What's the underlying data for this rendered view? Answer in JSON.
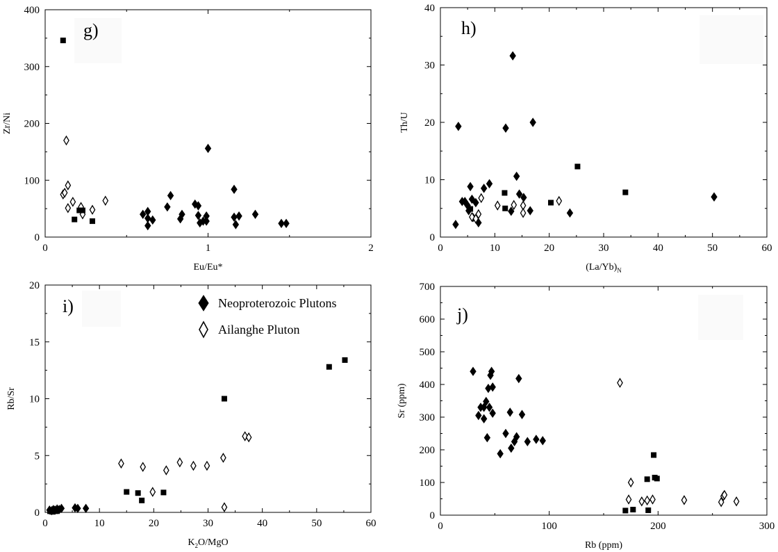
{
  "legend": {
    "items": [
      {
        "label": "Neoproterozoic Plutons",
        "marker": "diamond-filled"
      },
      {
        "label": "Ailanghe Pluton",
        "marker": "diamond-open"
      }
    ]
  },
  "chart_data": [
    {
      "id": "g",
      "type": "scatter",
      "panel_label": "g)",
      "xlabel": "Eu/Eu*",
      "ylabel": "Zr/Ni",
      "xlim": [
        0,
        2
      ],
      "ylim": [
        0,
        400
      ],
      "xticks": [
        0,
        1,
        2
      ],
      "xtick_labels": [
        "0",
        "1",
        "2"
      ],
      "yticks": [
        0,
        100,
        200,
        300,
        400
      ],
      "ytick_labels": [
        "0",
        "100",
        "200",
        "300",
        "400"
      ],
      "series": [
        {
          "marker": "diamond-filled",
          "points": [
            [
              0.6,
              40
            ],
            [
              0.63,
              45
            ],
            [
              0.63,
              33
            ],
            [
              0.63,
              20
            ],
            [
              0.66,
              30
            ],
            [
              0.75,
              53
            ],
            [
              0.77,
              73
            ],
            [
              0.83,
              32
            ],
            [
              0.84,
              40
            ],
            [
              0.92,
              58
            ],
            [
              0.94,
              55
            ],
            [
              0.94,
              38
            ],
            [
              0.95,
              25
            ],
            [
              0.97,
              28
            ],
            [
              0.99,
              28
            ],
            [
              0.99,
              37
            ],
            [
              1.0,
              156
            ],
            [
              1.16,
              35
            ],
            [
              1.16,
              84
            ],
            [
              1.17,
              22
            ],
            [
              1.19,
              37
            ],
            [
              1.29,
              40
            ],
            [
              1.45,
              24
            ],
            [
              1.48,
              24
            ]
          ]
        },
        {
          "marker": "diamond-open",
          "points": [
            [
              0.11,
              75
            ],
            [
              0.12,
              78
            ],
            [
              0.13,
              170
            ],
            [
              0.14,
              91
            ],
            [
              0.14,
              51
            ],
            [
              0.17,
              62
            ],
            [
              0.22,
              53
            ],
            [
              0.23,
              40
            ],
            [
              0.29,
              48
            ],
            [
              0.37,
              64
            ]
          ]
        },
        {
          "marker": "square-filled",
          "points": [
            [
              0.11,
              346
            ],
            [
              0.18,
              31
            ],
            [
              0.21,
              47
            ],
            [
              0.23,
              47
            ],
            [
              0.29,
              28
            ]
          ]
        }
      ]
    },
    {
      "id": "h",
      "type": "scatter",
      "panel_label": "h)",
      "xlabel": "(La/Yb)",
      "xlabel_sub": "N",
      "ylabel": "Th/U",
      "xlim": [
        0,
        60
      ],
      "ylim": [
        0,
        40
      ],
      "xticks": [
        0,
        10,
        20,
        30,
        40,
        50,
        60
      ],
      "xtick_labels": [
        "0",
        "10",
        "20",
        "30",
        "40",
        "50",
        "60"
      ],
      "yticks": [
        0,
        10,
        20,
        30,
        40
      ],
      "ytick_labels": [
        "0",
        "10",
        "20",
        "30",
        "40"
      ],
      "series": [
        {
          "marker": "diamond-filled",
          "points": [
            [
              2.8,
              2.2
            ],
            [
              3.3,
              19.3
            ],
            [
              4.0,
              6.2
            ],
            [
              4.5,
              6.2
            ],
            [
              5.0,
              5.5
            ],
            [
              5.2,
              4.6
            ],
            [
              5.5,
              8.8
            ],
            [
              5.8,
              6.6
            ],
            [
              6.0,
              3.4
            ],
            [
              6.5,
              6.0
            ],
            [
              7.0,
              2.5
            ],
            [
              8.0,
              8.5
            ],
            [
              9.0,
              9.3
            ],
            [
              12.0,
              19.0
            ],
            [
              13.0,
              4.5
            ],
            [
              13.3,
              31.6
            ],
            [
              14.0,
              10.6
            ],
            [
              14.5,
              7.5
            ],
            [
              15.3,
              6.9
            ],
            [
              16.5,
              4.6
            ],
            [
              17.0,
              20.0
            ],
            [
              23.8,
              4.2
            ],
            [
              50.3,
              7.0
            ]
          ]
        },
        {
          "marker": "diamond-open",
          "points": [
            [
              5.8,
              3.5
            ],
            [
              6.5,
              3.2
            ],
            [
              7.0,
              4.0
            ],
            [
              7.5,
              6.8
            ],
            [
              10.5,
              5.5
            ],
            [
              13.5,
              5.6
            ],
            [
              15.2,
              5.5
            ],
            [
              15.2,
              4.2
            ],
            [
              21.8,
              6.3
            ]
          ]
        },
        {
          "marker": "square-filled",
          "points": [
            [
              5.5,
              4.9
            ],
            [
              11.8,
              7.7
            ],
            [
              11.9,
              5.0
            ],
            [
              20.3,
              6.0
            ],
            [
              25.2,
              12.3
            ],
            [
              34.0,
              7.8
            ]
          ]
        }
      ]
    },
    {
      "id": "i",
      "type": "scatter",
      "panel_label": "i)",
      "xlabel": "K",
      "xlabel_sub": "2",
      "xlabel_rest": "O/MgO",
      "ylabel": "Rb/Sr",
      "xlim": [
        0,
        60
      ],
      "ylim": [
        0,
        20
      ],
      "xticks": [
        0,
        10,
        20,
        30,
        40,
        50,
        60
      ],
      "xtick_labels": [
        "0",
        "10",
        "20",
        "30",
        "40",
        "50",
        "60"
      ],
      "yticks": [
        0,
        5,
        10,
        15,
        20
      ],
      "ytick_labels": [
        "0",
        "5",
        "10",
        "15",
        "20"
      ],
      "series": [
        {
          "marker": "diamond-filled",
          "points": [
            [
              0.8,
              0.2
            ],
            [
              1.2,
              0.15
            ],
            [
              1.5,
              0.25
            ],
            [
              1.8,
              0.2
            ],
            [
              2.2,
              0.3
            ],
            [
              2.6,
              0.25
            ],
            [
              3.0,
              0.35
            ],
            [
              5.5,
              0.4
            ],
            [
              6.0,
              0.35
            ],
            [
              7.5,
              0.35
            ]
          ]
        },
        {
          "marker": "diamond-open",
          "points": [
            [
              14.0,
              4.3
            ],
            [
              18.0,
              4.0
            ],
            [
              19.8,
              1.8
            ],
            [
              22.3,
              3.7
            ],
            [
              24.8,
              4.4
            ],
            [
              27.3,
              4.1
            ],
            [
              29.8,
              4.1
            ],
            [
              32.8,
              4.8
            ],
            [
              33.0,
              0.45
            ],
            [
              36.8,
              6.7
            ],
            [
              37.5,
              6.6
            ]
          ]
        },
        {
          "marker": "square-filled",
          "points": [
            [
              0.9,
              0.1
            ],
            [
              1.4,
              0.05
            ],
            [
              2.0,
              0.1
            ],
            [
              15.0,
              1.8
            ],
            [
              17.1,
              1.7
            ],
            [
              17.8,
              1.05
            ],
            [
              21.8,
              1.75
            ],
            [
              33.0,
              10.0
            ],
            [
              52.3,
              12.8
            ],
            [
              55.2,
              13.4
            ]
          ]
        }
      ]
    },
    {
      "id": "j",
      "type": "scatter",
      "panel_label": "j)",
      "xlabel": "Rb (ppm)",
      "ylabel": "Sr (ppm)",
      "xlim": [
        0,
        300
      ],
      "ylim": [
        0,
        700
      ],
      "xticks": [
        0,
        100,
        200,
        300
      ],
      "xtick_labels": [
        "0",
        "100",
        "200",
        "300"
      ],
      "yticks": [
        0,
        100,
        200,
        300,
        400,
        500,
        600,
        700
      ],
      "ytick_labels": [
        "0",
        "100",
        "200",
        "300",
        "400",
        "500",
        "600",
        "700"
      ],
      "series": [
        {
          "marker": "diamond-filled",
          "points": [
            [
              30,
              440
            ],
            [
              35,
              305
            ],
            [
              37,
              330
            ],
            [
              40,
              330
            ],
            [
              40,
              295
            ],
            [
              42,
              348
            ],
            [
              43,
              237
            ],
            [
              44,
              388
            ],
            [
              45,
              330
            ],
            [
              46,
              428
            ],
            [
              47,
              440
            ],
            [
              48,
              312
            ],
            [
              48,
              392
            ],
            [
              55,
              188
            ],
            [
              60,
              250
            ],
            [
              64,
              315
            ],
            [
              65,
              205
            ],
            [
              68,
              225
            ],
            [
              70,
              240
            ],
            [
              72,
              418
            ],
            [
              75,
              308
            ],
            [
              80,
              225
            ],
            [
              88,
              232
            ],
            [
              94,
              228
            ]
          ]
        },
        {
          "marker": "diamond-open",
          "points": [
            [
              165,
              405
            ],
            [
              173,
              48
            ],
            [
              175,
              100
            ],
            [
              185,
              42
            ],
            [
              190,
              45
            ],
            [
              195,
              48
            ],
            [
              224,
              46
            ],
            [
              258,
              40
            ],
            [
              260,
              58
            ],
            [
              261,
              62
            ],
            [
              272,
              42
            ]
          ]
        },
        {
          "marker": "square-filled",
          "points": [
            [
              170,
              14
            ],
            [
              177,
              17
            ],
            [
              190,
              110
            ],
            [
              191,
              15
            ],
            [
              196,
              184
            ],
            [
              197,
              115
            ],
            [
              199,
              112
            ]
          ]
        }
      ]
    }
  ]
}
